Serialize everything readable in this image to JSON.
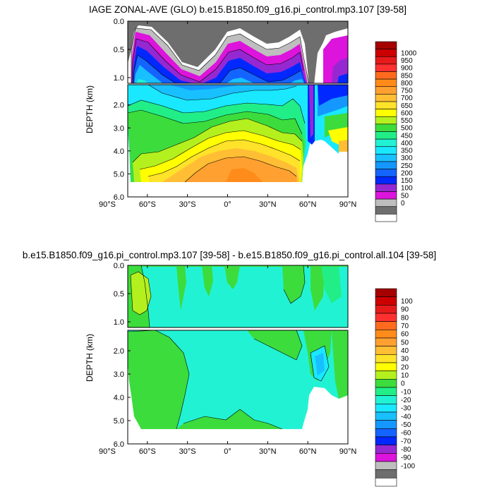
{
  "chart_data": [
    {
      "type": "heatmap",
      "title": "IAGE ZONAL-AVE (GLO) b.e15.B1850.f09_g16.pi_control.mp3.107 [39-58]",
      "ylabel": "DEPTH (km)",
      "xlabel": "",
      "x_ticks": [
        "90°S",
        "60°S",
        "30°S",
        "0°",
        "30°N",
        "60°N",
        "90°N"
      ],
      "x_tick_values": [
        -90,
        -60,
        -30,
        0,
        30,
        60,
        90
      ],
      "xlim": [
        -90,
        90
      ],
      "y_ticks_upper": [
        "0.0",
        "0.5",
        "1.0"
      ],
      "y_tick_values_upper": [
        0.0,
        0.5,
        1.0
      ],
      "y_ticks_lower": [
        "2.0",
        "3.0",
        "4.0",
        "5.0",
        "6.0"
      ],
      "y_tick_values_lower": [
        2.0,
        3.0,
        4.0,
        5.0,
        6.0
      ],
      "ylim": [
        0,
        6
      ],
      "colorbar": {
        "labels": [
          "1000",
          "950",
          "900",
          "850",
          "800",
          "750",
          "700",
          "650",
          "600",
          "550",
          "500",
          "450",
          "400",
          "350",
          "300",
          "250",
          "200",
          "150",
          "100",
          "50",
          "0"
        ],
        "colors": [
          "#a50000",
          "#cc0000",
          "#e61a1a",
          "#ff3030",
          "#ff6a1e",
          "#ff8c1a",
          "#ffa030",
          "#ffbe33",
          "#ffe22a",
          "#ffff00",
          "#b4f01e",
          "#3cdc3c",
          "#22ee88",
          "#22f2d4",
          "#19e8ff",
          "#19c0ff",
          "#1498ff",
          "#1464ff",
          "#0028ff",
          "#9628d2",
          "#dc14dc",
          "#bebebe",
          "#6e6e6e",
          "#ffffff"
        ]
      }
    },
    {
      "type": "heatmap",
      "title": "b.e15.B1850.f09_g16.pi_control.mp3.107 [39-58] - b.e15.B1850.f09_g16.pi_control.all.104 [39-58]",
      "ylabel": "DEPTH (km)",
      "xlabel": "",
      "x_ticks": [
        "90°S",
        "60°S",
        "30°S",
        "0°",
        "30°N",
        "60°N",
        "90°N"
      ],
      "x_tick_values": [
        -90,
        -60,
        -30,
        0,
        30,
        60,
        90
      ],
      "xlim": [
        -90,
        90
      ],
      "y_ticks_upper": [
        "0.0",
        "0.5",
        "1.0"
      ],
      "y_tick_values_upper": [
        0.0,
        0.5,
        1.0
      ],
      "y_ticks_lower": [
        "2.0",
        "3.0",
        "4.0",
        "5.0",
        "6.0"
      ],
      "y_tick_values_lower": [
        2.0,
        3.0,
        4.0,
        5.0,
        6.0
      ],
      "ylim": [
        0,
        6
      ],
      "colorbar": {
        "labels": [
          "100",
          "90",
          "80",
          "70",
          "60",
          "50",
          "40",
          "30",
          "20",
          "10",
          "0",
          "-10",
          "-20",
          "-30",
          "-40",
          "-50",
          "-60",
          "-70",
          "-80",
          "-90",
          "-100"
        ],
        "colors": [
          "#a50000",
          "#cc0000",
          "#e61a1a",
          "#ff3030",
          "#ff6a1e",
          "#ff8c1a",
          "#ffa030",
          "#ffbe33",
          "#ffe22a",
          "#ffff00",
          "#b4f01e",
          "#3cdc3c",
          "#22ee88",
          "#22f2d4",
          "#19e8ff",
          "#19c0ff",
          "#1498ff",
          "#1464ff",
          "#0028ff",
          "#9628d2",
          "#dc14dc",
          "#bebebe",
          "#6e6e6e",
          "#ffffff"
        ]
      }
    }
  ]
}
